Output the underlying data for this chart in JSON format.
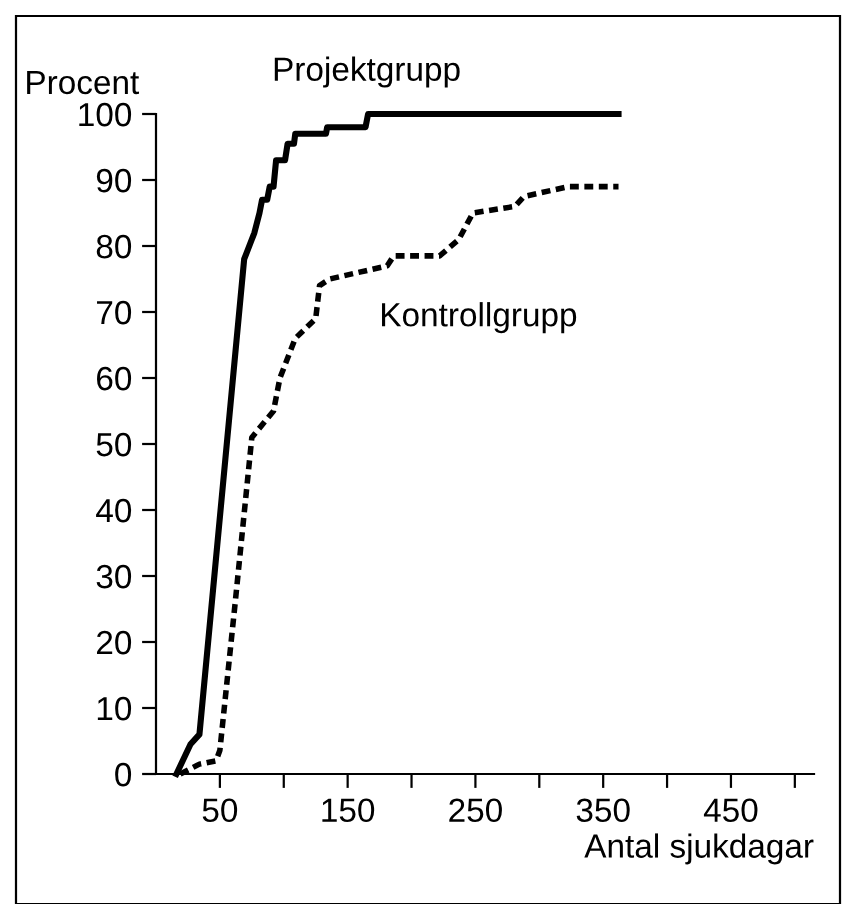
{
  "chart_data": {
    "type": "line",
    "ylabel": "Procent",
    "xlabel": "Antal sjukdagar",
    "series": [
      {
        "name": "Projektgrupp",
        "color": "#000000",
        "line_style": "solid",
        "x": [
          16,
          27,
          34,
          69,
          77,
          81,
          83,
          87,
          89,
          92,
          94,
          101,
          103,
          108,
          109,
          133,
          134,
          164,
          166,
          362
        ],
        "values": [
          0,
          4.5,
          6,
          78,
          82,
          85,
          87,
          87,
          89,
          89,
          93,
          93,
          95.5,
          95.5,
          97,
          97,
          98,
          98,
          100,
          100
        ]
      },
      {
        "name": "Kontrollgrupp",
        "color": "#000000",
        "line_style": "dashed",
        "x": [
          19,
          34,
          47,
          50,
          62,
          75,
          92,
          97,
          109,
          125,
          128,
          136,
          181,
          186,
          222,
          237,
          248,
          281,
          288,
          323,
          362
        ],
        "values": [
          0,
          1.5,
          2,
          3.6,
          26,
          51,
          55,
          60,
          66,
          69,
          74,
          75,
          77,
          78.5,
          78.5,
          81,
          85,
          86,
          87.5,
          89,
          89
        ]
      }
    ],
    "xlim": [
      0,
      515
    ],
    "ylim": [
      0,
      100
    ],
    "xticks": [
      {
        "value": 50,
        "label": "50"
      },
      {
        "value": 100,
        "label": null
      },
      {
        "value": 150,
        "label": "150"
      },
      {
        "value": 200,
        "label": null
      },
      {
        "value": 250,
        "label": "250"
      },
      {
        "value": 300,
        "label": null
      },
      {
        "value": 350,
        "label": "350"
      },
      {
        "value": 400,
        "label": null
      },
      {
        "value": 450,
        "label": "450"
      },
      {
        "value": 500,
        "label": null
      }
    ],
    "yticks": [
      0,
      10,
      20,
      30,
      40,
      50,
      60,
      70,
      80,
      90,
      100
    ],
    "grid": false,
    "legend": false,
    "marker": "none"
  }
}
